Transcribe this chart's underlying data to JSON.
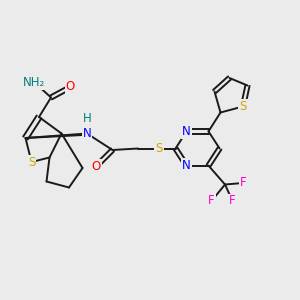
{
  "background_color": "#ebebeb",
  "bond_color": "#1a1a1a",
  "atom_colors": {
    "N": "#0000ff",
    "O": "#ff0000",
    "S": "#ccaa00",
    "F": "#ff00cc",
    "H": "#008080",
    "C": "#1a1a1a"
  },
  "lw": 1.4,
  "fs": 8.5
}
